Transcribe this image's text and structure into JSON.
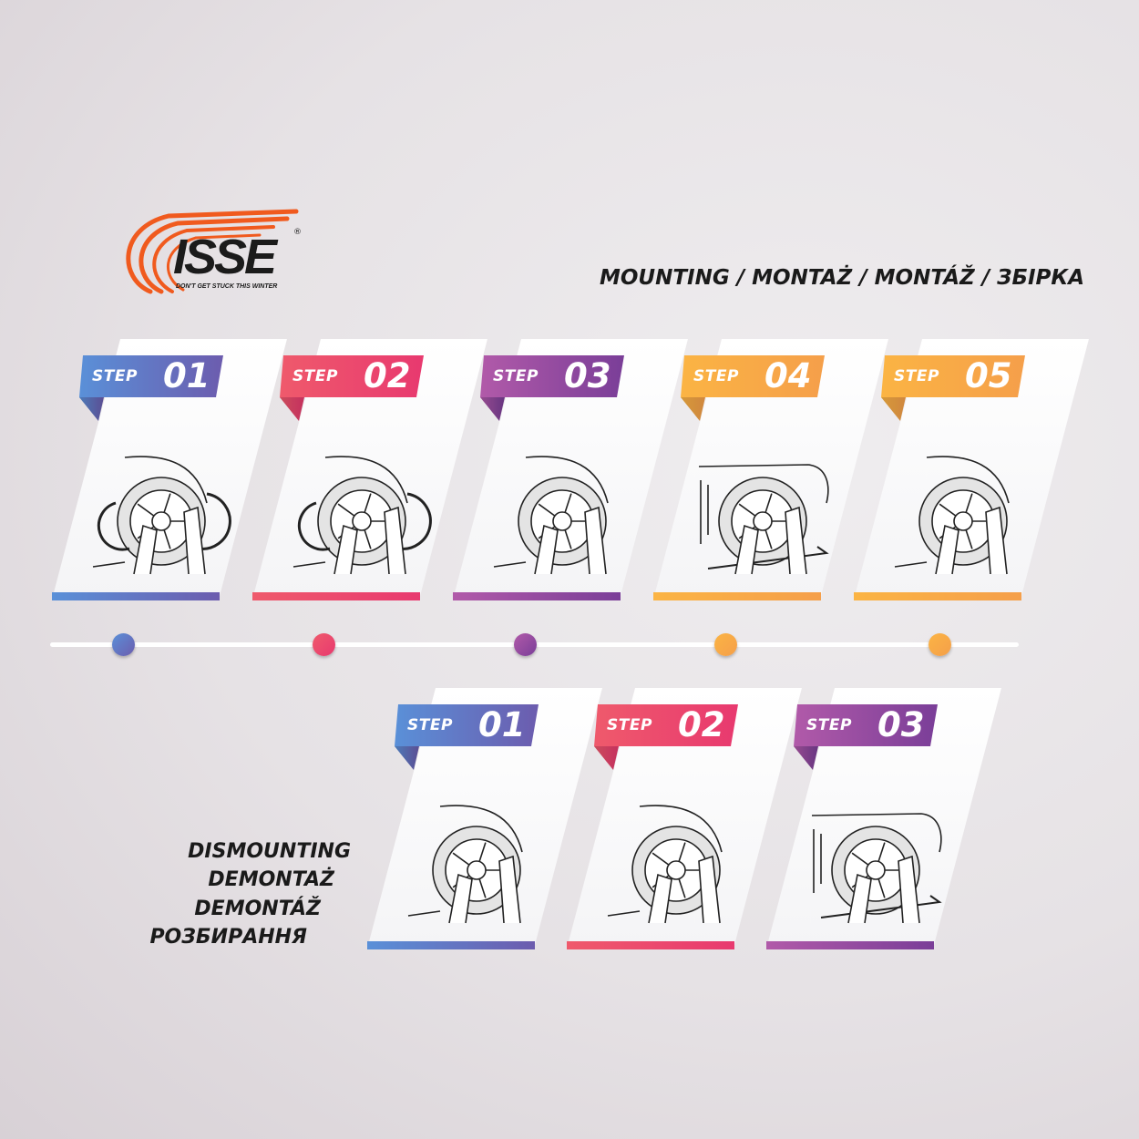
{
  "logo": {
    "brand": "ISSE",
    "tagline": "DON'T GET STUCK THIS WINTER",
    "registered": "®",
    "color": "#f05a1e"
  },
  "mounting_title": "MOUNTING / MONTAŻ / MONTÁŽ / ЗБІРКА",
  "dismounting_title": [
    "DISMOUNTING",
    "DEMONTAŻ",
    "DEMONTÁŽ",
    "РОЗБИРАННЯ"
  ],
  "colors": {
    "step1": [
      "#5a90d8",
      "#6c5cae"
    ],
    "step2": [
      "#ef5a6c",
      "#e8396f"
    ],
    "step3": [
      "#b15aa9",
      "#7a3e98"
    ],
    "step4": [
      "#fbb444",
      "#f59f4a"
    ],
    "step5": [
      "#fbb444",
      "#f59f4a"
    ]
  },
  "mounting_steps": [
    {
      "label": "STEP",
      "number": "01",
      "color": "step1",
      "icon": "wheel-rotate-icon"
    },
    {
      "label": "STEP",
      "number": "02",
      "color": "step2",
      "icon": "wheel-pull-icon"
    },
    {
      "label": "STEP",
      "number": "03",
      "color": "step3",
      "icon": "wheel-cover-icon"
    },
    {
      "label": "STEP",
      "number": "04",
      "color": "step4",
      "icon": "car-drive-icon"
    },
    {
      "label": "STEP",
      "number": "05",
      "color": "step5",
      "icon": "wheel-finish-icon"
    }
  ],
  "dismounting_steps": [
    {
      "label": "STEP",
      "number": "01",
      "color": "step1",
      "icon": "wheel-remove-icon"
    },
    {
      "label": "STEP",
      "number": "02",
      "color": "step2",
      "icon": "wheel-pull-down-icon"
    },
    {
      "label": "STEP",
      "number": "03",
      "color": "step3",
      "icon": "car-drive-off-icon"
    }
  ],
  "timeline": {
    "points": [
      "step1",
      "step2",
      "step3",
      "step4",
      "step5"
    ]
  }
}
